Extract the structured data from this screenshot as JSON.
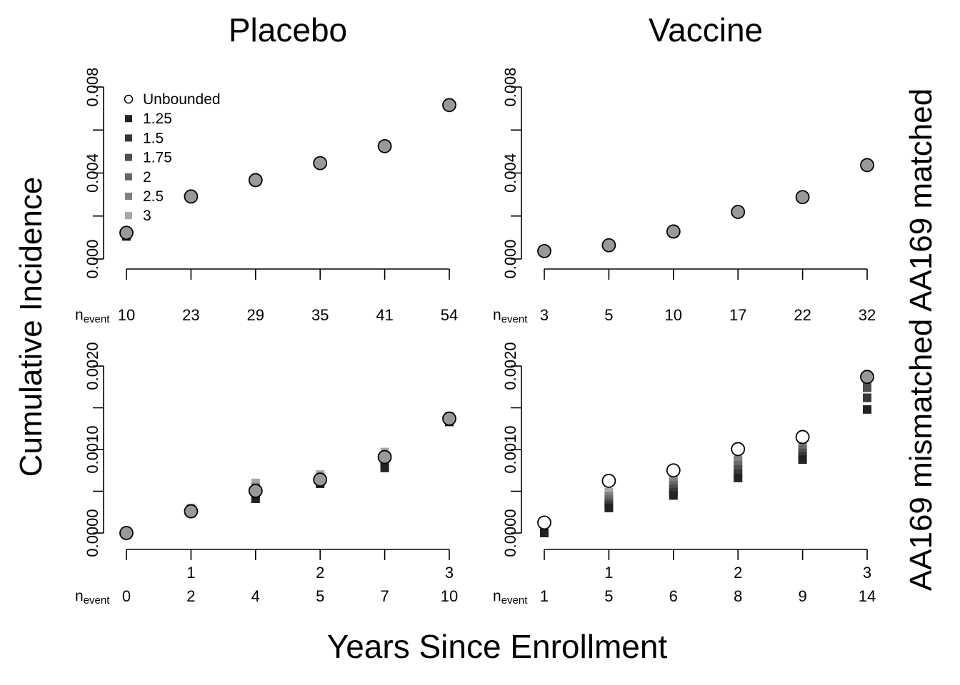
{
  "labels": {
    "col_left": "Placebo",
    "col_right": "Vaccine",
    "y_axis": "Cumulative Incidence",
    "x_axis": "Years Since Enrollment",
    "row_right": "AA169 mismatched AA169 matched",
    "nevent_main": "n",
    "nevent_sub": "event"
  },
  "legend": {
    "entries": [
      "Unbounded",
      "1.25",
      "1.5",
      "1.75",
      "2",
      "2.5",
      "3"
    ],
    "colors": [
      "#ffffff",
      "#222222",
      "#383838",
      "#4f4f4f",
      "#676767",
      "#808080",
      "#a8a8a8"
    ]
  },
  "chart_data": [
    {
      "type": "scatter",
      "panel": "top-left",
      "title": "Placebo",
      "ylim": [
        0,
        0.008
      ],
      "yticks": [
        "0.000",
        "0.004",
        "0.008"
      ],
      "yminor": [
        0.002,
        0.006
      ],
      "x": [
        0,
        0.5,
        1,
        1.5,
        2,
        2.5
      ],
      "xtick_labels": [],
      "n_event": [
        "10",
        "23",
        "29",
        "35",
        "41",
        "54"
      ],
      "series": [
        {
          "name": "Unbounded",
          "values": [
            0.00122,
            0.00291,
            0.00367,
            0.00446,
            0.00525,
            0.00716
          ]
        },
        {
          "name": "1.25",
          "values": [
            0.00105,
            0.00291,
            0.00367,
            0.00446,
            0.00525,
            0.00716
          ]
        },
        {
          "name": "1.5",
          "values": [
            0.00107,
            0.00291,
            0.00367,
            0.00446,
            0.00525,
            0.00716
          ]
        },
        {
          "name": "1.75",
          "values": [
            0.00109,
            0.00291,
            0.00367,
            0.00446,
            0.00525,
            0.00716
          ]
        },
        {
          "name": "2",
          "values": [
            0.00111,
            0.00291,
            0.00367,
            0.00446,
            0.00525,
            0.00716
          ]
        },
        {
          "name": "2.5",
          "values": [
            0.00113,
            0.00291,
            0.00367,
            0.00446,
            0.00525,
            0.00716
          ]
        },
        {
          "name": "3",
          "values": [
            0.00115,
            0.00291,
            0.00367,
            0.00446,
            0.00525,
            0.00716
          ]
        }
      ],
      "legend": true,
      "legend_position": "top-left"
    },
    {
      "type": "scatter",
      "panel": "top-right",
      "title": "Vaccine",
      "ylim": [
        0,
        0.008
      ],
      "yticks": [
        "0.000",
        "0.004",
        "0.008"
      ],
      "yminor": [
        0.002,
        0.006
      ],
      "x": [
        0,
        0.5,
        1,
        1.5,
        2,
        2.5
      ],
      "xtick_labels": [],
      "n_event": [
        "3",
        "5",
        "10",
        "17",
        "22",
        "32"
      ],
      "series": [
        {
          "name": "Unbounded",
          "values": [
            0.00037,
            0.00064,
            0.00128,
            0.00219,
            0.00288,
            0.00437
          ]
        },
        {
          "name": "1.25",
          "values": [
            0.00037,
            0.00064,
            0.00128,
            0.00219,
            0.00288,
            0.00437
          ]
        },
        {
          "name": "1.5",
          "values": [
            0.00037,
            0.00064,
            0.00128,
            0.00219,
            0.00288,
            0.00437
          ]
        },
        {
          "name": "1.75",
          "values": [
            0.00037,
            0.00064,
            0.00128,
            0.00219,
            0.00288,
            0.00437
          ]
        },
        {
          "name": "2",
          "values": [
            0.00037,
            0.00064,
            0.00128,
            0.00219,
            0.00288,
            0.00437
          ]
        },
        {
          "name": "2.5",
          "values": [
            0.00037,
            0.00064,
            0.00128,
            0.00219,
            0.00288,
            0.00437
          ]
        },
        {
          "name": "3",
          "values": [
            0.00037,
            0.00064,
            0.00128,
            0.00219,
            0.00288,
            0.00437
          ]
        }
      ],
      "legend": false
    },
    {
      "type": "scatter",
      "panel": "bottom-left",
      "ylim": [
        0,
        0.002
      ],
      "yticks": [
        "0.0000",
        "0.0010",
        "0.0020"
      ],
      "yminor": [
        0.0005,
        0.0015
      ],
      "x": [
        0,
        0.5,
        1,
        1.5,
        2,
        2.5
      ],
      "xtick_labels": [
        "",
        "1",
        "",
        "2",
        "",
        "3"
      ],
      "n_event": [
        "0",
        "2",
        "4",
        "5",
        "7",
        "10"
      ],
      "series": [
        {
          "name": "Unbounded",
          "values": [
            0.0,
            0.00026,
            0.000505,
            0.00064,
            0.00091,
            0.00137
          ]
        },
        {
          "name": "1.25",
          "values": [
            0.0,
            0.00024,
            0.00041,
            0.00059,
            0.00078,
            0.00133
          ]
        },
        {
          "name": "1.5",
          "values": [
            0.0,
            0.00025,
            0.00045,
            0.00061,
            0.00082,
            0.00134
          ]
        },
        {
          "name": "1.75",
          "values": [
            0.0,
            0.00026,
            0.00049,
            0.00063,
            0.00086,
            0.00135
          ]
        },
        {
          "name": "2",
          "values": [
            0.0,
            0.00027,
            0.00052,
            0.00065,
            0.00089,
            0.00136
          ]
        },
        {
          "name": "2.5",
          "values": [
            0.0,
            0.00028,
            0.00055,
            0.00067,
            0.00093,
            0.00138
          ]
        },
        {
          "name": "3",
          "values": [
            0.0,
            0.0003,
            0.0006,
            0.0007,
            0.00097,
            0.0014
          ]
        }
      ],
      "legend": false
    },
    {
      "type": "scatter",
      "panel": "bottom-right",
      "ylim": [
        0,
        0.002
      ],
      "yticks": [
        "0.0000",
        "0.0010",
        "0.0020"
      ],
      "yminor": [
        0.0005,
        0.0015
      ],
      "x": [
        0,
        0.5,
        1,
        1.5,
        2,
        2.5
      ],
      "xtick_labels": [
        "",
        "1",
        "",
        "2",
        "",
        "3"
      ],
      "n_event": [
        "1",
        "5",
        "6",
        "8",
        "9",
        "14"
      ],
      "series": [
        {
          "name": "Unbounded",
          "values": [
            0.000125,
            0.000625,
            0.00075,
            0.001005,
            0.00115,
            0.00187
          ]
        },
        {
          "name": "1.25",
          "values": [
            0.0,
            0.0003,
            0.00045,
            0.00066,
            0.00088,
            0.00148
          ]
        },
        {
          "name": "1.5",
          "values": [
            0.0,
            0.00033,
            0.00049,
            0.00071,
            0.00092,
            0.00162
          ]
        },
        {
          "name": "1.75",
          "values": [
            0.0,
            0.00036,
            0.00053,
            0.00076,
            0.00096,
            0.00174
          ]
        },
        {
          "name": "2",
          "values": [
            0.0,
            0.0004,
            0.00057,
            0.00081,
            0.001,
            0.00177
          ]
        },
        {
          "name": "2.5",
          "values": [
            0.0,
            0.00044,
            0.00061,
            0.00087,
            0.00104,
            0.0018
          ]
        },
        {
          "name": "3",
          "values": [
            0.0,
            0.00049,
            0.00066,
            0.00092,
            0.00108,
            0.00183
          ]
        }
      ],
      "legend": false
    }
  ]
}
